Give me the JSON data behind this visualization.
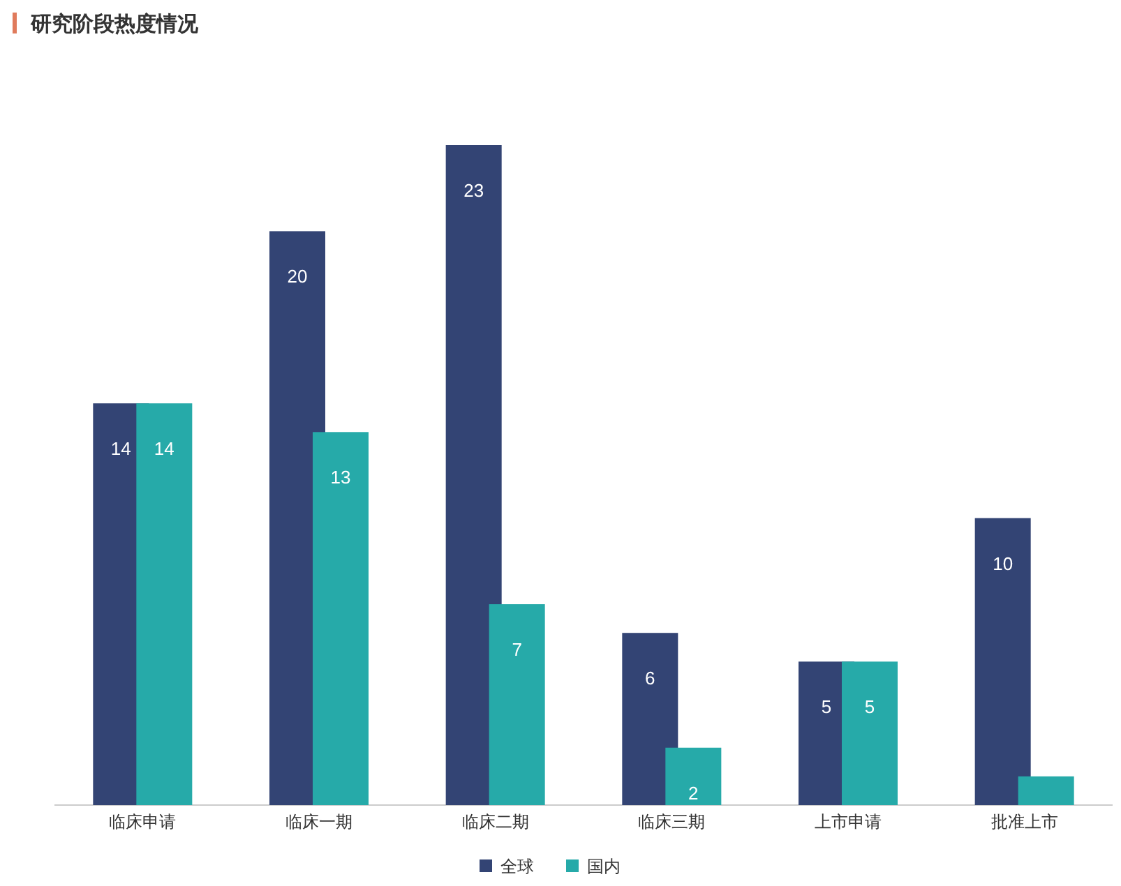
{
  "chart_data": {
    "type": "bar",
    "title": "研究阶段热度情况",
    "categories": [
      "临床申请",
      "临床一期",
      "临床二期",
      "临床三期",
      "上市申请",
      "批准上市"
    ],
    "series": [
      {
        "name": "全球",
        "color": "#334474",
        "values": [
          14,
          20,
          23,
          6,
          5,
          10
        ],
        "value_labels": [
          "14",
          "20",
          "23",
          "6",
          "5",
          "10"
        ]
      },
      {
        "name": "国内",
        "color": "#26aaa9",
        "values": [
          14,
          13,
          7,
          2,
          5,
          1
        ],
        "value_labels": [
          "14",
          "13",
          "7",
          "2",
          "5",
          null
        ]
      }
    ],
    "relative": false,
    "legend": "bottom",
    "grid": false
  }
}
